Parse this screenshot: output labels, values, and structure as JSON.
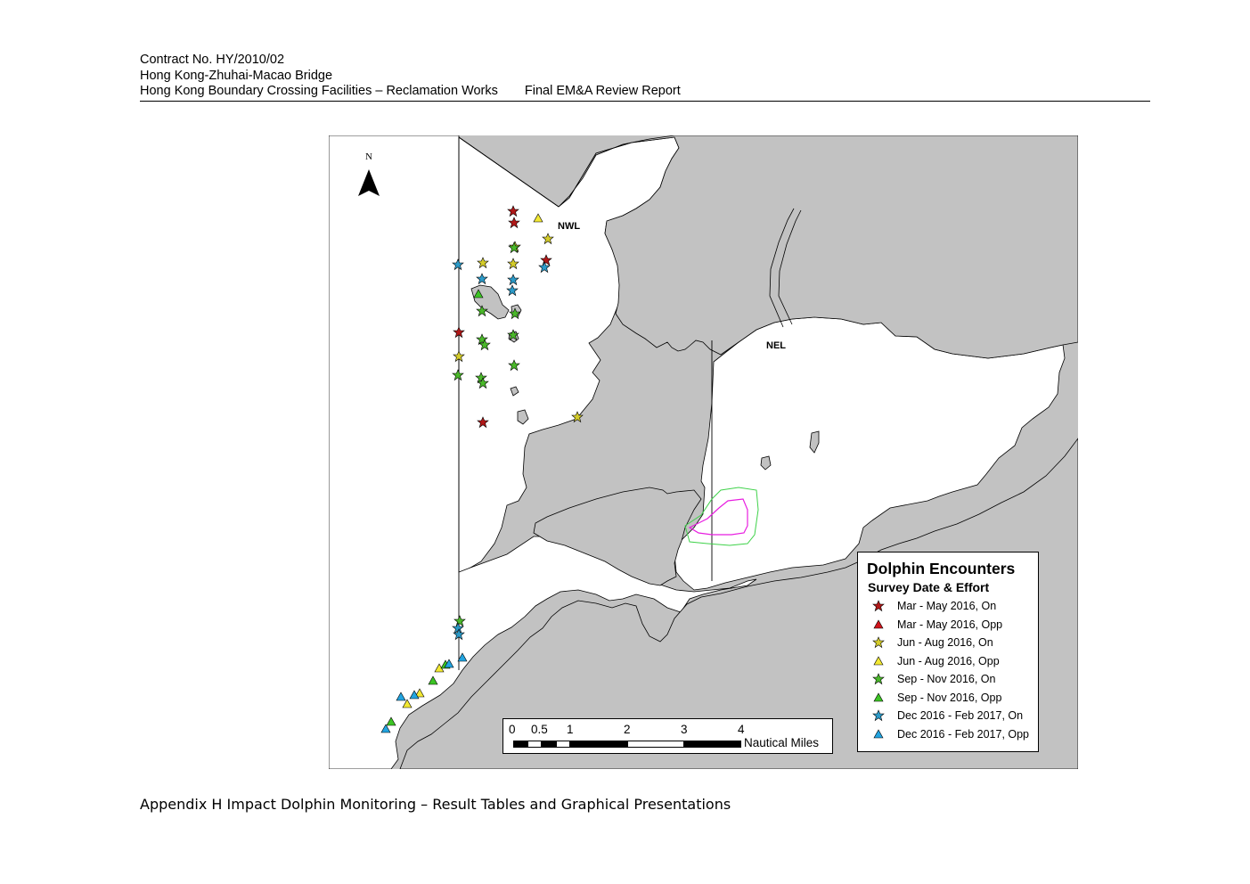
{
  "header": {
    "line1": "Contract No. HY/2010/02",
    "line2": "Hong Kong-Zhuhai-Macao Bridge",
    "line3": "Hong Kong Boundary Crossing Facilities – Reclamation Works",
    "line3_right": "Final EM&A Review Report"
  },
  "map": {
    "north_label": "N",
    "area_labels": {
      "nwl": "NWL",
      "nel": "NEL"
    },
    "colors": {
      "land": "#c2c2c2",
      "water": "#ffffff",
      "pink_line": "#e81ee0",
      "green_line": "#3fd24a"
    },
    "legend": {
      "title": "Dolphin Encounters",
      "subtitle": "Survey Date & Effort",
      "items": [
        {
          "label": "Mar - May 2016, On",
          "shape": "star",
          "color": "#b01818"
        },
        {
          "label": "Mar - May 2016, Opp",
          "shape": "triangle",
          "color": "#d0141c"
        },
        {
          "label": "Jun - Aug 2016, On",
          "shape": "star",
          "color": "#d4cc2a"
        },
        {
          "label": "Jun - Aug 2016, Opp",
          "shape": "triangle",
          "color": "#f2e832"
        },
        {
          "label": "Sep - Nov 2016, On",
          "shape": "star",
          "color": "#4ab82a"
        },
        {
          "label": "Sep - Nov 2016, Opp",
          "shape": "triangle",
          "color": "#3cc424"
        },
        {
          "label": "Dec 2016 - Feb 2017, On",
          "shape": "star",
          "color": "#2c9ac8"
        },
        {
          "label": "Dec 2016 - Feb 2017, Opp",
          "shape": "triangle",
          "color": "#22a4e0"
        }
      ]
    },
    "scale_bar": {
      "ticks": [
        "0",
        "0.5",
        "1",
        "2",
        "3",
        "4"
      ],
      "unit": "Nautical Miles"
    }
  },
  "footer": {
    "caption": "Appendix H Impact Dolphin Monitoring – Result Tables and Graphical Presentations"
  }
}
